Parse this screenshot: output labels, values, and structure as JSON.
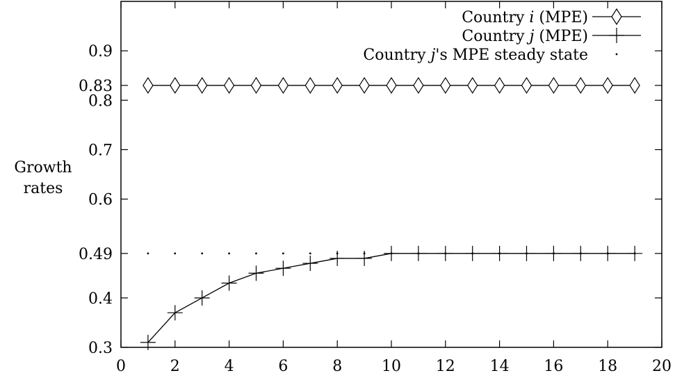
{
  "chart_data": {
    "type": "line",
    "title": "",
    "xlabel": "",
    "ylabel_lines": [
      "Growth",
      "rates"
    ],
    "xlim": [
      0,
      20
    ],
    "ylim": [
      0.3,
      1.0
    ],
    "x_ticks": [
      0,
      2,
      4,
      6,
      8,
      10,
      12,
      14,
      16,
      18,
      20
    ],
    "x_tick_labels": [
      "0",
      "2",
      "4",
      "6",
      "8",
      "10",
      "12",
      "14",
      "16",
      "18",
      "20"
    ],
    "y_ticks": [
      0.3,
      0.4,
      0.49,
      0.6,
      0.7,
      0.8,
      0.83,
      0.9
    ],
    "y_tick_labels": [
      "0.3",
      "0.4",
      "0.49",
      "0.6",
      "0.7",
      "0.8",
      "0.83",
      "0.9"
    ],
    "grid": false,
    "legend_position": "top-right",
    "series": [
      {
        "name": "Country i (MPE)",
        "legend_parts": [
          "Country ",
          "i",
          " (MPE)"
        ],
        "marker": "diamond",
        "line": true,
        "color": "#000000",
        "x": [
          1,
          2,
          3,
          4,
          5,
          6,
          7,
          8,
          9,
          10,
          11,
          12,
          13,
          14,
          15,
          16,
          17,
          18,
          19
        ],
        "y": [
          0.83,
          0.83,
          0.83,
          0.83,
          0.83,
          0.83,
          0.83,
          0.83,
          0.83,
          0.83,
          0.83,
          0.83,
          0.83,
          0.83,
          0.83,
          0.83,
          0.83,
          0.83,
          0.83
        ]
      },
      {
        "name": "Country j (MPE)",
        "legend_parts": [
          "Country ",
          "j",
          " (MPE)"
        ],
        "marker": "plus",
        "line": true,
        "color": "#000000",
        "x": [
          1,
          2,
          3,
          4,
          5,
          6,
          7,
          8,
          9,
          10,
          11,
          12,
          13,
          14,
          15,
          16,
          17,
          18,
          19
        ],
        "y": [
          0.31,
          0.37,
          0.4,
          0.43,
          0.45,
          0.46,
          0.47,
          0.48,
          0.48,
          0.49,
          0.49,
          0.49,
          0.49,
          0.49,
          0.49,
          0.49,
          0.49,
          0.49,
          0.49
        ]
      },
      {
        "name": "Country j's MPE steady state",
        "legend_parts": [
          "Country ",
          "j",
          "'s MPE steady state"
        ],
        "marker": "dot",
        "line": false,
        "color": "#000000",
        "x": [
          1,
          2,
          3,
          4,
          5,
          6,
          7,
          8,
          9,
          10,
          11,
          12,
          13,
          14,
          15,
          16,
          17,
          18,
          19
        ],
        "y": [
          0.49,
          0.49,
          0.49,
          0.49,
          0.49,
          0.49,
          0.49,
          0.49,
          0.49,
          0.49,
          0.49,
          0.49,
          0.49,
          0.49,
          0.49,
          0.49,
          0.49,
          0.49,
          0.49
        ]
      }
    ]
  }
}
